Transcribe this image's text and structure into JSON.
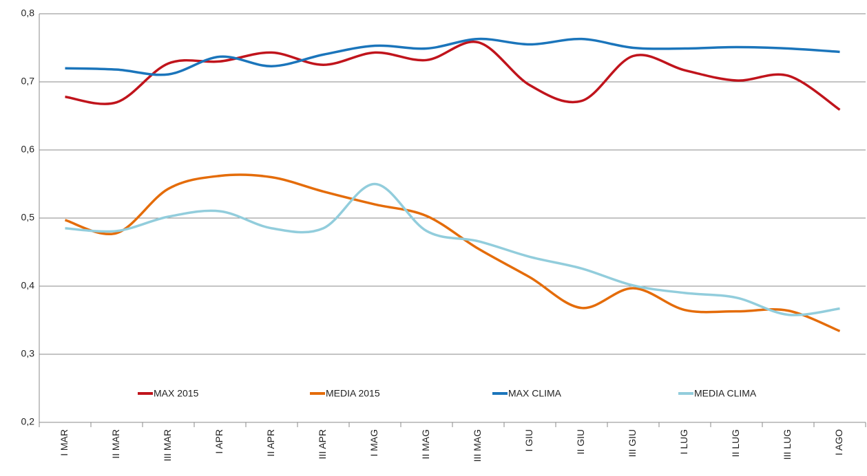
{
  "chart_data": {
    "type": "line",
    "categories": [
      "I MAR",
      "II MAR",
      "III MAR",
      "I APR",
      "II APR",
      "III APR",
      "I MAG",
      "II MAG",
      "III MAG",
      "I GIU",
      "II GIU",
      "III GIU",
      "I LUG",
      "II LUG",
      "III LUG",
      "I AGO"
    ],
    "series": [
      {
        "name": "MAX 2015",
        "color": "#c0141c",
        "values": [
          0.678,
          0.67,
          0.727,
          0.73,
          0.743,
          0.725,
          0.743,
          0.732,
          0.758,
          0.695,
          0.672,
          0.738,
          0.717,
          0.702,
          0.709,
          0.659
        ]
      },
      {
        "name": "MEDIA 2015",
        "color": "#e46c0a",
        "values": [
          0.497,
          0.478,
          0.543,
          0.562,
          0.56,
          0.539,
          0.52,
          0.503,
          0.455,
          0.413,
          0.368,
          0.397,
          0.365,
          0.363,
          0.364,
          0.334
        ]
      },
      {
        "name": "MAX CLIMA",
        "color": "#1b75bb",
        "values": [
          0.72,
          0.718,
          0.711,
          0.737,
          0.723,
          0.74,
          0.753,
          0.749,
          0.763,
          0.755,
          0.763,
          0.75,
          0.749,
          0.751,
          0.749,
          0.744
        ]
      },
      {
        "name": "MEDIA CLIMA",
        "color": "#92cddc",
        "values": [
          0.485,
          0.481,
          0.502,
          0.51,
          0.485,
          0.485,
          0.55,
          0.481,
          0.466,
          0.443,
          0.426,
          0.401,
          0.39,
          0.383,
          0.358,
          0.367
        ]
      }
    ],
    "ylim": [
      0.2,
      0.8
    ],
    "yticks": [
      {
        "value": 0.2,
        "label": "0,2"
      },
      {
        "value": 0.3,
        "label": "0,3"
      },
      {
        "value": 0.4,
        "label": "0,4"
      },
      {
        "value": 0.5,
        "label": "0,5"
      },
      {
        "value": 0.6,
        "label": "0,6"
      },
      {
        "value": 0.7,
        "label": "0,7"
      },
      {
        "value": 0.8,
        "label": "0,8"
      }
    ],
    "grid": true,
    "smooth": true,
    "legend": "bottom"
  }
}
